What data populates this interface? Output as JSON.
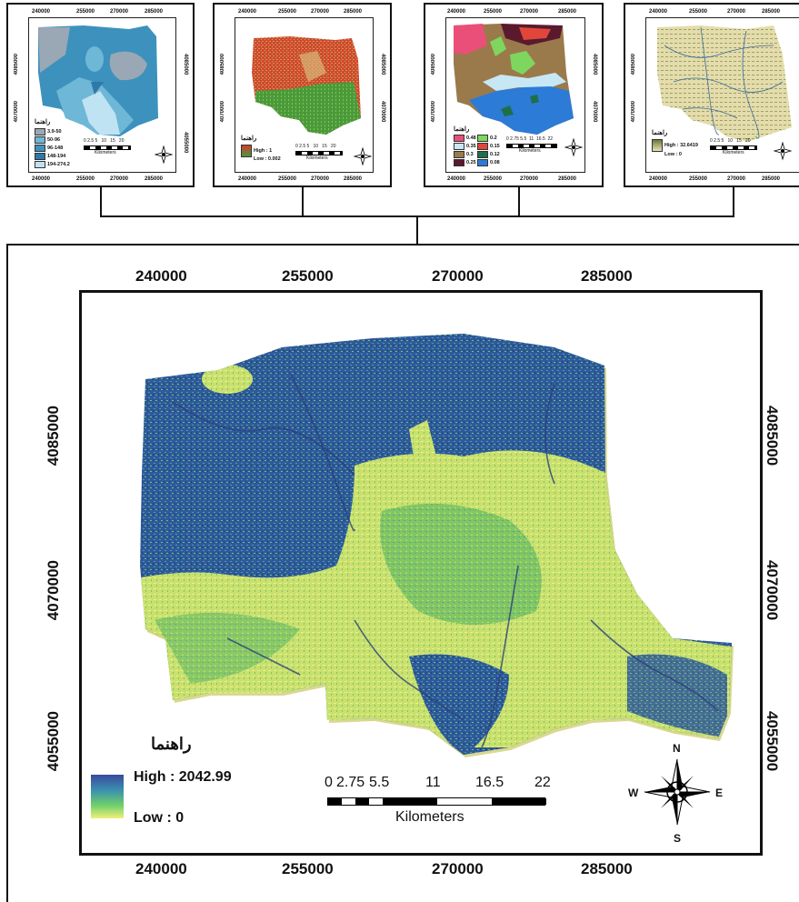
{
  "thumbnails": [
    {
      "ticks_x": [
        "240000",
        "255000",
        "270000",
        "285000"
      ],
      "ticks_y": [
        "4085000",
        "4070000",
        "4055000"
      ],
      "legend_title": "راهنما",
      "legend": [
        {
          "label": "3.9-50",
          "color": "#9aa7b5"
        },
        {
          "label": "50-96",
          "color": "#6eb7d6"
        },
        {
          "label": "96-148",
          "color": "#3c92bd"
        },
        {
          "label": "148-194",
          "color": "#2f78a8"
        },
        {
          "label": "194-274.2",
          "color": "#bfe3f3"
        }
      ],
      "scale_numbers": "0 2.5 5   10   15   20",
      "scale_unit": "Kilometers"
    },
    {
      "ticks_x": [
        "240000",
        "255000",
        "270000",
        "285000"
      ],
      "ticks_y": [
        "4085000",
        "4070000",
        "4055000"
      ],
      "legend_title": "راهنما",
      "legend": [
        {
          "label": "High : 1",
          "color": "#d23c28"
        },
        {
          "label": "Low : 0.002",
          "color": "#4a9a3a"
        }
      ],
      "scale_numbers": "0 2.5 5   10   15   20",
      "scale_unit": "Kilometers"
    },
    {
      "ticks_x": [
        "240000",
        "255000",
        "270000",
        "285000"
      ],
      "ticks_y": [
        "4085000",
        "4070000",
        "4055000"
      ],
      "legend_title": "راهنما",
      "legend": [
        {
          "label": "0.48",
          "color": "#ea4f7a"
        },
        {
          "label": "0.2",
          "color": "#7ed65f"
        },
        {
          "label": "0.35",
          "color": "#c8e7f5"
        },
        {
          "label": "0.15",
          "color": "#e0473a"
        },
        {
          "label": "0.3",
          "color": "#9a7a4a"
        },
        {
          "label": "0.12",
          "color": "#1f6f4a"
        },
        {
          "label": "0.25",
          "color": "#5a1a2e"
        },
        {
          "label": "0.08",
          "color": "#2c7bd6"
        }
      ],
      "scale_numbers": "0 2.75 5.5  11  16.5  22",
      "scale_unit": "Kilometers"
    },
    {
      "ticks_x": [
        "240000",
        "255000",
        "270000",
        "285000"
      ],
      "ticks_y": [
        "4085000",
        "4070000",
        "4055000"
      ],
      "legend_title": "راهنما",
      "legend": [
        {
          "label": "High : 32.6419",
          "color": "#6a7a3a"
        },
        {
          "label": "Low : 0",
          "color": "#e9e2b6"
        }
      ],
      "scale_numbers": "0 2.5 5   10   15   20",
      "scale_unit": "Kilometers"
    }
  ],
  "main_map": {
    "ticks_x": [
      "240000",
      "255000",
      "270000",
      "285000"
    ],
    "ticks_y": [
      "4085000",
      "4070000",
      "4055000"
    ],
    "legend_title": "راهنما",
    "legend_high": "High : 2042.99",
    "legend_low": "Low : 0",
    "scale_numbers": [
      "0",
      "2.75",
      "5.5",
      "11",
      "16.5",
      "22"
    ],
    "scale_unit": "Kilometers",
    "colors": {
      "high": "#3a4a9c",
      "mid": "#3a8fb0",
      "green": "#6fd06a",
      "low": "#f0f07a"
    }
  },
  "compass": {
    "n": "N",
    "s": "S",
    "e": "E",
    "w": "W"
  }
}
